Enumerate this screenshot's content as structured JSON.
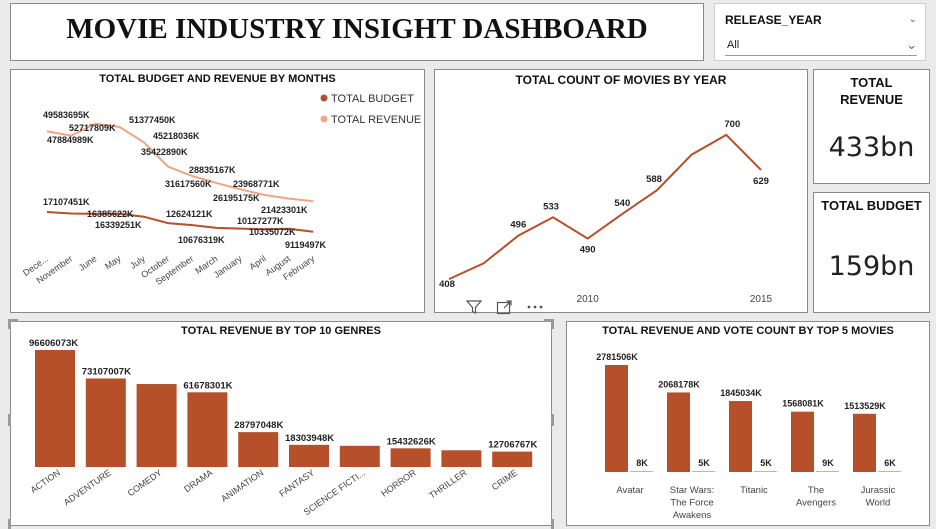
{
  "header": {
    "title": "MOVIE INDUSTRY INSIGHT DASHBOARD"
  },
  "slicer": {
    "label": "RELEASE_YEAR",
    "value": "All",
    "icon": "chevron-down-icon"
  },
  "kpis": [
    {
      "title_line1": "TOTAL",
      "title_line2": "REVENUE",
      "value": "433bn"
    },
    {
      "title": "TOTAL BUDGET",
      "value": "159bn"
    }
  ],
  "visual_header": {
    "icons": [
      "filter-icon",
      "focus-mode-icon",
      "more-options-icon"
    ]
  },
  "colors": {
    "accent": "#b5502a",
    "revenue": "#f0a585",
    "budget": "#b5502a"
  },
  "chart_data": [
    {
      "id": "budget_revenue_months",
      "type": "line",
      "title": "TOTAL BUDGET AND REVENUE BY MONTHS",
      "categories": [
        "December",
        "November",
        "June",
        "May",
        "July",
        "October",
        "September",
        "March",
        "January",
        "April",
        "August",
        "February"
      ],
      "category_display": [
        "Dece...",
        "November",
        "June",
        "May",
        "July",
        "October",
        "September",
        "March",
        "January",
        "April",
        "August",
        "February"
      ],
      "series": [
        {
          "name": "TOTAL BUDGET",
          "values": [
            17107451,
            16500000,
            16339251,
            16385622,
            15200000,
            12624121,
            11800000,
            10676319,
            10400000,
            10127277,
            10335072,
            9119497
          ]
        },
        {
          "name": "TOTAL REVENUE",
          "values": [
            49583695,
            47884989,
            52717809,
            51377450,
            45218036,
            35422890,
            31617560,
            28835167,
            26195175,
            23968771,
            22500000,
            21423301
          ]
        }
      ],
      "labels": [
        {
          "text": "49583695K"
        },
        {
          "text": "52717809K"
        },
        {
          "text": "47884989K"
        },
        {
          "text": "51377450K"
        },
        {
          "text": "45218036K"
        },
        {
          "text": "35422890K"
        },
        {
          "text": "28835167K"
        },
        {
          "text": "31617560K"
        },
        {
          "text": "23968771K"
        },
        {
          "text": "26195175K"
        },
        {
          "text": "21423301K"
        },
        {
          "text": "17107451K"
        },
        {
          "text": "16385622K"
        },
        {
          "text": "12624121K"
        },
        {
          "text": "16339251K"
        },
        {
          "text": "10127277K"
        },
        {
          "text": "10335072K"
        },
        {
          "text": "10676319K"
        },
        {
          "text": "9119497K"
        }
      ],
      "legend": "top-right",
      "unit": "K"
    },
    {
      "id": "movies_by_year",
      "type": "line",
      "title": "TOTAL COUNT OF MOVIES BY YEAR",
      "x": [
        2006,
        2007,
        2008,
        2009,
        2010,
        2011,
        2012,
        2013,
        2014,
        2015
      ],
      "values": [
        408,
        440,
        496,
        533,
        490,
        540,
        588,
        660,
        700,
        629
      ],
      "point_labels": [
        {
          "x": 2006,
          "text": "408"
        },
        {
          "x": 2008,
          "text": "496"
        },
        {
          "x": 2009,
          "text": "533"
        },
        {
          "x": 2010,
          "text": "490"
        },
        {
          "x": 2011,
          "text": "540"
        },
        {
          "x": 2012,
          "text": "588"
        },
        {
          "x": 2014,
          "text": "700"
        },
        {
          "x": 2015,
          "text": "629"
        }
      ],
      "x_ticks": [
        "2010",
        "2015"
      ]
    },
    {
      "id": "revenue_top_genres",
      "type": "bar",
      "title": "TOTAL REVENUE BY TOP 10 GENRES",
      "categories": [
        "ACTION",
        "ADVENTURE",
        "COMEDY",
        "DRAMA",
        "ANIMATION",
        "FANTASY",
        "SCIENCE FICTI...",
        "HORROR",
        "THRILLER",
        "CRIME"
      ],
      "values": [
        96606073,
        73107007,
        68500000,
        61678301,
        28797048,
        18303948,
        17500000,
        15432626,
        13800000,
        12706767
      ],
      "value_labels": [
        "96606073K",
        "73107007K",
        "",
        "61678301K",
        "28797048K",
        "18303948K",
        "",
        "15432626K",
        "",
        "12706767K"
      ]
    },
    {
      "id": "revenue_vote_top5",
      "type": "bar",
      "title": "TOTAL REVENUE AND VOTE COUNT BY TOP 5 MOVIES",
      "categories": [
        "Avatar",
        "Star Wars: The Force Awakens",
        "Titanic",
        "The Avengers",
        "Jurassic World"
      ],
      "category_lines": [
        [
          "Avatar"
        ],
        [
          "Star Wars:",
          "The Force",
          "Awakens"
        ],
        [
          "Titanic"
        ],
        [
          "The",
          "Avengers"
        ],
        [
          "Jurassic",
          "World"
        ]
      ],
      "series": [
        {
          "name": "Total Revenue",
          "values": [
            2781506,
            2068178,
            1845034,
            1568081,
            1513529
          ],
          "labels": [
            "2781506K",
            "2068178K",
            "1845034K",
            "1568081K",
            "1513529K"
          ]
        },
        {
          "name": "Vote Count",
          "values": [
            8,
            5,
            5,
            9,
            6
          ],
          "labels": [
            "8K",
            "5K",
            "5K",
            "9K",
            "6K"
          ]
        }
      ]
    }
  ]
}
